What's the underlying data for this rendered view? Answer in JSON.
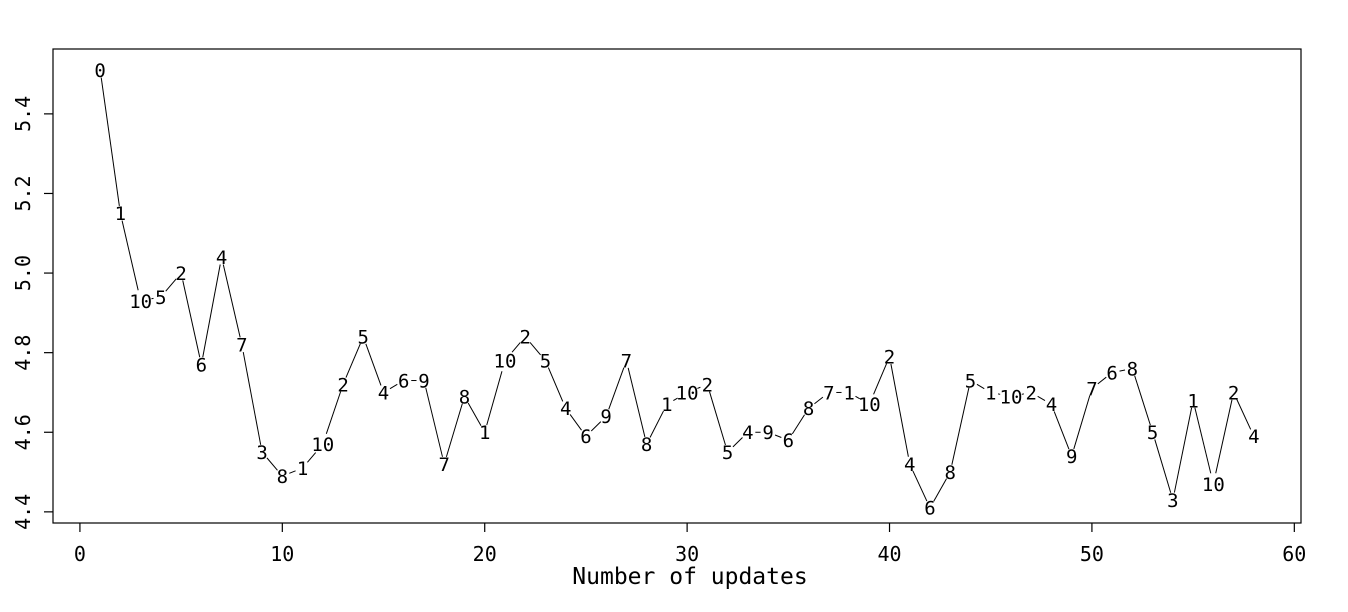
{
  "figure": {
    "background": "#ffffff",
    "foreground": "#000000"
  },
  "chart_data": {
    "type": "line",
    "title": "",
    "xlabel": "Number of updates",
    "ylabel": "",
    "x_ticks": [
      0,
      10,
      20,
      30,
      40,
      50,
      60
    ],
    "y_ticks": [
      "4.4",
      "4.6",
      "4.8",
      "5.0",
      "5.2",
      "5.4"
    ],
    "xlim": [
      -1.33,
      60.33
    ],
    "ylim": [
      4.372,
      5.563
    ],
    "grid": false,
    "legend": null,
    "line_color": "#000000",
    "marker_style": "each point drawn as its digit label with line gaps (R type='b')",
    "series": [
      {
        "name": "series-1",
        "x": [
          1,
          2,
          3,
          4,
          5,
          6,
          7,
          8,
          9,
          10,
          11,
          12,
          13,
          14,
          15,
          16,
          17,
          18,
          19,
          20,
          21,
          22,
          23,
          24,
          25,
          26,
          27,
          28,
          29,
          30,
          31,
          32,
          33,
          34,
          35,
          36,
          37,
          38,
          39,
          40,
          41,
          42,
          43,
          44,
          45,
          46,
          47,
          48,
          49,
          50,
          51,
          52,
          53,
          54,
          55,
          56,
          57,
          58
        ],
        "y": [
          5.51,
          5.15,
          4.93,
          4.94,
          5.0,
          4.77,
          5.04,
          4.82,
          4.55,
          4.49,
          4.51,
          4.57,
          4.72,
          4.84,
          4.7,
          4.73,
          4.73,
          4.52,
          4.69,
          4.6,
          4.78,
          4.84,
          4.78,
          4.66,
          4.59,
          4.64,
          4.78,
          4.57,
          4.67,
          4.7,
          4.72,
          4.55,
          4.6,
          4.6,
          4.58,
          4.66,
          4.7,
          4.7,
          4.67,
          4.79,
          4.52,
          4.41,
          4.5,
          4.73,
          4.7,
          4.69,
          4.7,
          4.67,
          4.54,
          4.71,
          4.75,
          4.76,
          4.6,
          4.43,
          4.68,
          4.47,
          4.7,
          4.59
        ],
        "point_labels": [
          "0",
          "1",
          "10",
          "5",
          "2",
          "6",
          "4",
          "7",
          "3",
          "8",
          "1",
          "10",
          "2",
          "5",
          "4",
          "6",
          "9",
          "7",
          "8",
          "1",
          "10",
          "2",
          "5",
          "4",
          "6",
          "9",
          "7",
          "8",
          "1",
          "10",
          "2",
          "5",
          "4",
          "9",
          "6",
          "8",
          "7",
          "1",
          "10",
          "2",
          "4",
          "6",
          "8",
          "5",
          "1",
          "10",
          "2",
          "4",
          "9",
          "7",
          "6",
          "8",
          "5",
          "3",
          "1",
          "10",
          "2",
          "4"
        ]
      }
    ]
  }
}
